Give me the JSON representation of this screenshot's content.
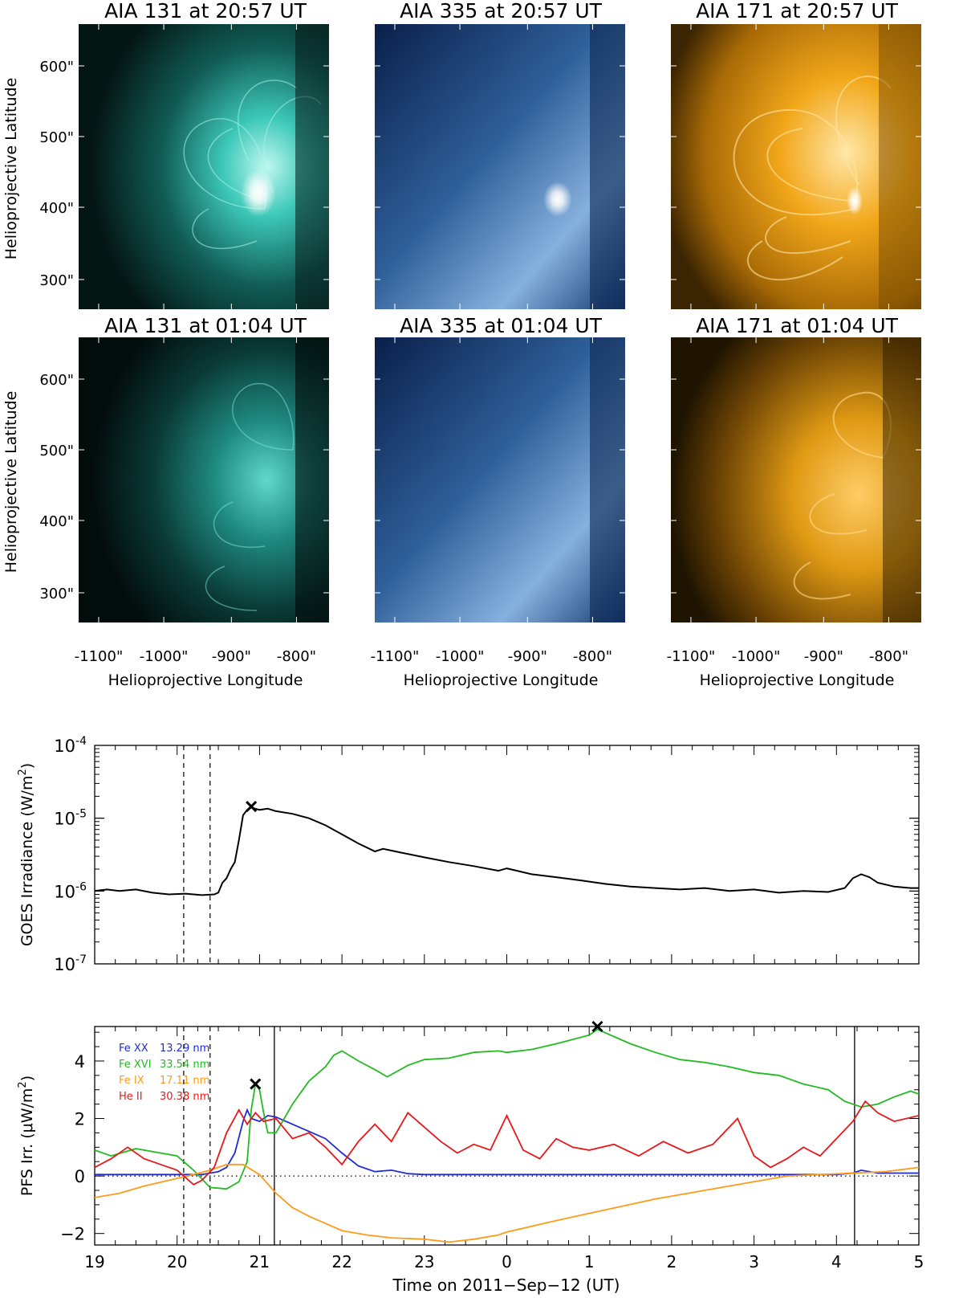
{
  "images": {
    "axis": {
      "y_ticks": [
        "600\"",
        "500\"",
        "400\"",
        "300\""
      ],
      "x_ticks": [
        "-1100\"",
        "-1000\"",
        "-900\"",
        "-800\""
      ],
      "ylabel": "Helioprojective Latitude",
      "xlabel": "Helioprojective Longitude"
    },
    "rows": [
      {
        "panels": [
          {
            "title": "AIA 131 at 20:57 UT",
            "channel": "131",
            "color": "#3fe0d0"
          },
          {
            "title": "AIA 335 at 20:57 UT",
            "channel": "335",
            "color": "#6b9fd6"
          },
          {
            "title": "AIA 171 at 20:57 UT",
            "channel": "171",
            "color": "#f2a21a"
          }
        ]
      },
      {
        "panels": [
          {
            "title": "AIA 131 at 01:04 UT",
            "channel": "131",
            "color": "#3fe0d0"
          },
          {
            "title": "AIA 335 at 01:04 UT",
            "channel": "335",
            "color": "#6b9fd6"
          },
          {
            "title": "AIA 171 at 01:04 UT",
            "channel": "171",
            "color": "#f2a21a"
          }
        ]
      }
    ]
  },
  "chart_data": [
    {
      "type": "line",
      "ylabel": "GOES Irradiance (W/m²)",
      "ylabel_parts": {
        "main": "GOES Irradiance (W/m",
        "sup": "2",
        "end": ")"
      },
      "yscale": "log",
      "ylim": [
        1e-07,
        0.0001
      ],
      "y_tick_labels": [
        {
          "base": "10",
          "exp": "-4",
          "value": 0.0001
        },
        {
          "base": "10",
          "exp": "-5",
          "value": 1e-05
        },
        {
          "base": "10",
          "exp": "-6",
          "value": 1e-06
        },
        {
          "base": "10",
          "exp": "-7",
          "value": 1e-07
        }
      ],
      "xlim": [
        19,
        29
      ],
      "dashed_lines": [
        20.08,
        20.4
      ],
      "peak_marker": {
        "x": 20.9,
        "y": 1.45e-05
      },
      "series": [
        {
          "name": "GOES",
          "color": "#000000",
          "x": [
            19.0,
            19.15,
            19.3,
            19.5,
            19.7,
            19.9,
            20.1,
            20.3,
            20.45,
            20.5,
            20.55,
            20.6,
            20.65,
            20.7,
            20.75,
            20.8,
            20.85,
            20.9,
            21.0,
            21.1,
            21.2,
            21.4,
            21.6,
            21.8,
            22.0,
            22.2,
            22.4,
            22.5,
            22.7,
            23.0,
            23.3,
            23.6,
            23.9,
            24.0,
            24.3,
            24.6,
            24.9,
            25.2,
            25.5,
            25.8,
            26.1,
            26.4,
            26.7,
            27.0,
            27.3,
            27.6,
            27.9,
            28.1,
            28.2,
            28.3,
            28.4,
            28.5,
            28.7,
            28.9,
            29.0
          ],
          "values": [
            1e-06,
            1.05e-06,
            1e-06,
            1.05e-06,
            9.5e-07,
            9e-07,
            9.2e-07,
            8.8e-07,
            9e-07,
            9.5e-07,
            1.3e-06,
            1.5e-06,
            2e-06,
            2.5e-06,
            5e-06,
            1.1e-05,
            1.3e-05,
            1.4e-05,
            1.3e-05,
            1.35e-05,
            1.25e-05,
            1.15e-05,
            1e-05,
            8e-06,
            6e-06,
            4.5e-06,
            3.5e-06,
            3.8e-06,
            3.4e-06,
            2.9e-06,
            2.5e-06,
            2.2e-06,
            1.9e-06,
            2.05e-06,
            1.7e-06,
            1.55e-06,
            1.4e-06,
            1.25e-06,
            1.15e-06,
            1.1e-06,
            1.05e-06,
            1.1e-06,
            1e-06,
            1.05e-06,
            9.5e-07,
            1e-06,
            9.7e-07,
            1.1e-06,
            1.5e-06,
            1.7e-06,
            1.55e-06,
            1.3e-06,
            1.15e-06,
            1.1e-06,
            1.1e-06
          ]
        }
      ]
    },
    {
      "type": "line",
      "ylabel": "PFS Irr. (μW/m²)",
      "ylabel_parts": {
        "main": "PFS Irr. (μW/m",
        "sup": "2",
        "end": ")"
      },
      "xlabel": "Time on 2011−Sep−12 (UT)",
      "xlim": [
        19,
        29
      ],
      "ylim": [
        -2.4,
        5.2
      ],
      "y_ticks": [
        {
          "label": "4",
          "value": 4
        },
        {
          "label": "2",
          "value": 2
        },
        {
          "label": "0",
          "value": 0
        },
        {
          "label": "−2",
          "value": -2
        }
      ],
      "x_ticks": [
        {
          "label": "19",
          "value": 19
        },
        {
          "label": "20",
          "value": 20
        },
        {
          "label": "21",
          "value": 21
        },
        {
          "label": "22",
          "value": 22
        },
        {
          "label": "23",
          "value": 23
        },
        {
          "label": "0",
          "value": 24
        },
        {
          "label": "1",
          "value": 25
        },
        {
          "label": "2",
          "value": 26
        },
        {
          "label": "3",
          "value": 27
        },
        {
          "label": "4",
          "value": 28
        },
        {
          "label": "5",
          "value": 29
        }
      ],
      "dashed_lines": [
        20.08,
        20.4
      ],
      "solid_lines": [
        21.18,
        28.22
      ],
      "zero_line": 0,
      "peak_markers": [
        {
          "x": 20.95,
          "y": 3.2
        },
        {
          "x": 25.1,
          "y": 5.2
        }
      ],
      "legend": [
        {
          "name": "Fe XX",
          "wavelength": "13.29 nm",
          "color": "#1f2bd6"
        },
        {
          "name": "Fe XVI",
          "wavelength": "33.54 nm",
          "color": "#22bb22"
        },
        {
          "name": "Fe IX",
          "wavelength": "17.11 nm",
          "color": "#ff9a1a"
        },
        {
          "name": "He II",
          "wavelength": "30.38 nm",
          "color": "#e81818"
        }
      ],
      "series": [
        {
          "name": "Fe XX 13.29 nm",
          "color": "#1f2bd6",
          "x": [
            19.0,
            19.5,
            20.0,
            20.3,
            20.5,
            20.6,
            20.7,
            20.8,
            20.85,
            20.9,
            21.0,
            21.1,
            21.2,
            21.4,
            21.6,
            21.8,
            22.0,
            22.2,
            22.4,
            22.6,
            22.8,
            23.0,
            24.0,
            25.0,
            26.0,
            27.0,
            28.0,
            28.2,
            28.3,
            28.5,
            29.0
          ],
          "values": [
            0.05,
            0.05,
            0.05,
            0.05,
            0.15,
            0.3,
            0.8,
            1.9,
            2.3,
            2.0,
            1.9,
            2.1,
            2.05,
            1.8,
            1.55,
            1.3,
            0.8,
            0.35,
            0.15,
            0.2,
            0.08,
            0.05,
            0.05,
            0.05,
            0.05,
            0.05,
            0.05,
            0.1,
            0.2,
            0.1,
            0.1
          ]
        },
        {
          "name": "Fe XVI 33.54 nm",
          "color": "#22bb22",
          "x": [
            19.0,
            19.2,
            19.5,
            19.8,
            20.0,
            20.2,
            20.4,
            20.6,
            20.75,
            20.85,
            20.9,
            20.95,
            21.0,
            21.05,
            21.1,
            21.2,
            21.4,
            21.6,
            21.8,
            21.9,
            22.0,
            22.2,
            22.4,
            22.55,
            22.8,
            23.0,
            23.3,
            23.6,
            23.9,
            24.0,
            24.3,
            24.6,
            24.8,
            25.0,
            25.1,
            25.3,
            25.5,
            25.8,
            26.1,
            26.4,
            26.7,
            27.0,
            27.3,
            27.6,
            27.9,
            28.1,
            28.3,
            28.5,
            28.7,
            28.9,
            29.0
          ],
          "values": [
            0.9,
            0.7,
            0.95,
            0.8,
            0.7,
            0.2,
            -0.4,
            -0.45,
            -0.2,
            0.5,
            2.3,
            3.2,
            3.0,
            2.2,
            1.5,
            1.5,
            2.5,
            3.3,
            3.8,
            4.2,
            4.35,
            4.0,
            3.7,
            3.45,
            3.85,
            4.05,
            4.1,
            4.3,
            4.35,
            4.3,
            4.4,
            4.6,
            4.75,
            4.9,
            5.1,
            4.85,
            4.6,
            4.3,
            4.05,
            3.95,
            3.8,
            3.6,
            3.5,
            3.2,
            3.0,
            2.6,
            2.4,
            2.5,
            2.75,
            2.95,
            2.85
          ]
        },
        {
          "name": "Fe IX 17.11 nm",
          "color": "#ff9a1a",
          "x": [
            19.0,
            19.3,
            19.6,
            19.9,
            20.2,
            20.4,
            20.6,
            20.8,
            21.0,
            21.2,
            21.4,
            21.6,
            21.8,
            22.0,
            22.3,
            22.6,
            23.0,
            23.3,
            23.6,
            23.9,
            24.0,
            24.3,
            24.6,
            25.0,
            25.4,
            25.8,
            26.2,
            26.6,
            27.0,
            27.4,
            27.8,
            28.2,
            28.6,
            29.0
          ],
          "values": [
            -0.75,
            -0.6,
            -0.35,
            -0.15,
            0.05,
            0.2,
            0.4,
            0.4,
            0.05,
            -0.6,
            -1.1,
            -1.4,
            -1.65,
            -1.9,
            -2.05,
            -2.15,
            -2.2,
            -2.3,
            -2.2,
            -2.05,
            -1.95,
            -1.75,
            -1.55,
            -1.3,
            -1.05,
            -0.8,
            -0.6,
            -0.4,
            -0.2,
            0.0,
            0.05,
            0.1,
            0.15,
            0.3
          ]
        },
        {
          "name": "He II 30.38 nm",
          "color": "#e81818",
          "x": [
            19.0,
            19.2,
            19.4,
            19.6,
            19.8,
            20.0,
            20.2,
            20.3,
            20.45,
            20.6,
            20.75,
            20.85,
            20.95,
            21.05,
            21.2,
            21.4,
            21.6,
            21.8,
            22.0,
            22.2,
            22.4,
            22.6,
            22.8,
            23.0,
            23.2,
            23.4,
            23.6,
            23.8,
            24.0,
            24.2,
            24.4,
            24.6,
            24.8,
            25.0,
            25.3,
            25.6,
            25.9,
            26.2,
            26.5,
            26.8,
            27.0,
            27.2,
            27.4,
            27.6,
            27.8,
            28.0,
            28.2,
            28.35,
            28.5,
            28.7,
            29.0
          ],
          "values": [
            0.3,
            0.6,
            1.0,
            0.6,
            0.4,
            0.2,
            -0.3,
            -0.15,
            0.3,
            1.5,
            2.3,
            1.8,
            2.2,
            1.9,
            2.0,
            1.3,
            1.5,
            1.0,
            0.4,
            1.2,
            1.8,
            1.2,
            2.2,
            1.7,
            1.2,
            0.8,
            1.1,
            0.9,
            2.1,
            0.9,
            0.6,
            1.3,
            1.0,
            0.9,
            1.1,
            0.7,
            1.2,
            0.8,
            1.1,
            2.0,
            0.7,
            0.3,
            0.6,
            1.0,
            0.7,
            1.3,
            1.9,
            2.6,
            2.2,
            1.9,
            2.1
          ]
        }
      ]
    }
  ]
}
